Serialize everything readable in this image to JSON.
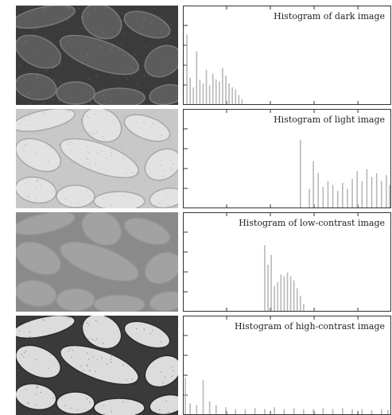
{
  "panels": [
    {
      "title": "Histogram of dark image",
      "photo_tone": {
        "bg": "#3b3b3b",
        "bean": "#5c5c5c",
        "bean_edge": "#7a7a7a",
        "speck": "#8a8a8a"
      }
    },
    {
      "title": "Histogram of light image",
      "photo_tone": {
        "bg": "#c8c8c8",
        "bean": "#e2e2e2",
        "bean_edge": "#a8a8a8",
        "speck": "#9a9a9a"
      }
    },
    {
      "title": "Histogram of low-contrast image",
      "photo_tone": {
        "bg": "#8a8a8a",
        "bean": "#a2a2a2",
        "bean_edge": "#949494",
        "speck": "#9c9c9c"
      }
    },
    {
      "title": "Histogram of high-contrast image",
      "photo_tone": {
        "bg": "#3a3a3a",
        "bean": "#dcdcdc",
        "bean_edge": "#2a2a2a",
        "speck": "#555555"
      }
    }
  ],
  "chart_data": [
    {
      "type": "bar",
      "title": "Histogram of dark image",
      "xlim": [
        0,
        255
      ],
      "ylim": [
        0,
        1
      ],
      "x": [
        4,
        8,
        12,
        16,
        20,
        24,
        28,
        32,
        36,
        40,
        44,
        48,
        52,
        56,
        60,
        64,
        68,
        72
      ],
      "values": [
        0.72,
        0.28,
        0.18,
        0.55,
        0.26,
        0.22,
        0.36,
        0.2,
        0.32,
        0.26,
        0.24,
        0.38,
        0.3,
        0.22,
        0.18,
        0.16,
        0.1,
        0.06
      ]
    },
    {
      "type": "bar",
      "title": "Histogram of light image",
      "xlim": [
        0,
        255
      ],
      "ylim": [
        0,
        1
      ],
      "x": [
        144,
        155,
        160,
        166,
        172,
        178,
        184,
        190,
        196,
        202,
        208,
        214,
        220,
        226,
        232,
        238,
        244,
        250,
        254
      ],
      "values": [
        0.7,
        0.2,
        0.48,
        0.36,
        0.22,
        0.28,
        0.24,
        0.18,
        0.26,
        0.2,
        0.3,
        0.38,
        0.28,
        0.4,
        0.32,
        0.36,
        0.28,
        0.34,
        0.24
      ]
    },
    {
      "type": "bar",
      "title": "Histogram of low-contrast image",
      "xlim": [
        0,
        255
      ],
      "ylim": [
        0,
        1
      ],
      "x": [
        100,
        104,
        108,
        112,
        116,
        120,
        124,
        128,
        132,
        136,
        140,
        144,
        148
      ],
      "values": [
        0.68,
        0.48,
        0.58,
        0.26,
        0.3,
        0.38,
        0.36,
        0.4,
        0.36,
        0.32,
        0.24,
        0.16,
        0.08
      ]
    },
    {
      "type": "bar",
      "title": "Histogram of high-contrast image",
      "xlim": [
        0,
        255
      ],
      "ylim": [
        0,
        1
      ],
      "x": [
        2,
        8,
        16,
        24,
        32,
        40,
        52,
        64,
        76,
        88,
        100,
        112,
        124,
        136,
        148,
        160,
        172,
        184,
        196,
        208,
        220,
        232,
        244,
        252
      ],
      "values": [
        0.38,
        0.12,
        0.1,
        0.36,
        0.14,
        0.1,
        0.08,
        0.06,
        0.06,
        0.07,
        0.06,
        0.08,
        0.06,
        0.07,
        0.06,
        0.06,
        0.07,
        0.06,
        0.07,
        0.06,
        0.06,
        0.05,
        0.06,
        0.05
      ]
    }
  ]
}
